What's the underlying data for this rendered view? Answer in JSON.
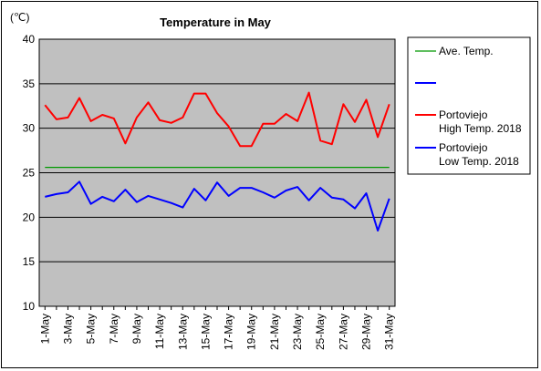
{
  "chart_data": {
    "type": "line",
    "title": "Temperature in May",
    "unit_label": "(℃)",
    "ylim": [
      10,
      40
    ],
    "yticks": [
      10,
      15,
      20,
      25,
      30,
      35,
      40
    ],
    "categories": [
      "1-May",
      "2-May",
      "3-May",
      "4-May",
      "5-May",
      "6-May",
      "7-May",
      "8-May",
      "9-May",
      "10-May",
      "11-May",
      "12-May",
      "13-May",
      "14-May",
      "15-May",
      "16-May",
      "17-May",
      "18-May",
      "19-May",
      "20-May",
      "21-May",
      "22-May",
      "23-May",
      "24-May",
      "25-May",
      "26-May",
      "27-May",
      "28-May",
      "29-May",
      "30-May",
      "31-May"
    ],
    "tick_labels": [
      "1-May",
      "3-May",
      "5-May",
      "7-May",
      "9-May",
      "11-May",
      "13-May",
      "15-May",
      "17-May",
      "19-May",
      "21-May",
      "23-May",
      "25-May",
      "27-May",
      "29-May",
      "31-May"
    ],
    "grid": true,
    "legend_position": "right",
    "legend": [
      {
        "label": "Ave. Temp.",
        "color": "#009900"
      },
      {
        "label": "",
        "color": "#0000ff"
      },
      {
        "label": "Portoviejo\nHigh Temp. 2018",
        "color": "#ff0000"
      },
      {
        "label": "Portoviejo\nLow Temp. 2018",
        "color": "#0000ff"
      }
    ],
    "series": [
      {
        "name": "Ave. Temp.",
        "color": "#009900",
        "values": [
          25.6,
          25.6,
          25.6,
          25.6,
          25.6,
          25.6,
          25.6,
          25.6,
          25.6,
          25.6,
          25.6,
          25.6,
          25.6,
          25.6,
          25.6,
          25.6,
          25.6,
          25.6,
          25.6,
          25.6,
          25.6,
          25.6,
          25.6,
          25.6,
          25.6,
          25.6,
          25.6,
          25.6,
          25.6,
          25.6,
          25.6
        ]
      },
      {
        "name": "Portoviejo High Temp. 2018",
        "color": "#ff0000",
        "values": [
          32.6,
          31.0,
          31.2,
          33.4,
          30.8,
          31.5,
          31.1,
          28.3,
          31.2,
          32.9,
          30.9,
          30.6,
          31.2,
          33.9,
          33.9,
          31.7,
          30.2,
          28.0,
          28.0,
          30.5,
          30.5,
          31.6,
          30.8,
          34.0,
          28.6,
          28.2,
          32.7,
          30.7,
          33.2,
          29.0,
          32.7
        ]
      },
      {
        "name": "Portoviejo Low Temp. 2018",
        "color": "#0000ff",
        "values": [
          22.3,
          22.6,
          22.8,
          24.0,
          21.5,
          22.3,
          21.8,
          23.1,
          21.7,
          22.4,
          22.0,
          21.6,
          21.1,
          23.2,
          21.9,
          23.9,
          22.4,
          23.3,
          23.3,
          22.8,
          22.2,
          23.0,
          23.4,
          21.9,
          23.3,
          22.2,
          22.0,
          21.0,
          22.7,
          18.5,
          22.1
        ]
      }
    ]
  }
}
